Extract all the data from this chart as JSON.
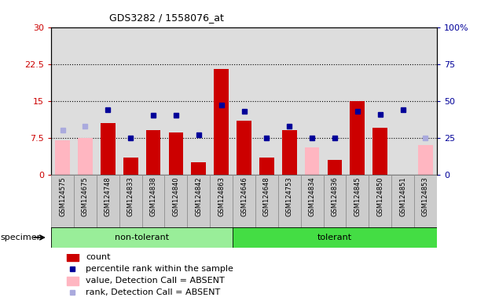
{
  "title": "GDS3282 / 1558076_at",
  "samples": [
    "GSM124575",
    "GSM124675",
    "GSM124748",
    "GSM124833",
    "GSM124838",
    "GSM124840",
    "GSM124842",
    "GSM124863",
    "GSM124646",
    "GSM124648",
    "GSM124753",
    "GSM124834",
    "GSM124836",
    "GSM124845",
    "GSM124850",
    "GSM124851",
    "GSM124853"
  ],
  "count": [
    null,
    null,
    10.5,
    3.5,
    9.0,
    8.5,
    2.5,
    21.5,
    11.0,
    3.5,
    9.0,
    null,
    3.0,
    15.0,
    9.5,
    null,
    null
  ],
  "percentile_rank": [
    null,
    null,
    44.0,
    25.0,
    40.0,
    40.0,
    27.0,
    47.0,
    43.0,
    25.0,
    33.0,
    25.0,
    25.0,
    43.0,
    41.0,
    44.0,
    null
  ],
  "value_absent": [
    7.0,
    7.5,
    null,
    null,
    null,
    null,
    null,
    null,
    null,
    null,
    null,
    5.5,
    null,
    null,
    null,
    null,
    6.0
  ],
  "rank_absent": [
    30.0,
    33.0,
    null,
    null,
    null,
    null,
    null,
    null,
    null,
    null,
    null,
    null,
    null,
    null,
    null,
    null,
    25.0
  ],
  "non_tolerant_count": 8,
  "tolerant_count": 9,
  "ylim_left": [
    0,
    30
  ],
  "ylim_right": [
    0,
    100
  ],
  "yticks_left": [
    0,
    7.5,
    15,
    22.5,
    30
  ],
  "yticks_right": [
    0,
    25,
    50,
    75,
    100
  ],
  "hlines": [
    7.5,
    15,
    22.5
  ],
  "bar_color_count": "#CC0000",
  "bar_color_absent_value": "#FFB6C1",
  "dot_color_rank": "#000099",
  "dot_color_absent_rank": "#AAAADD",
  "bg_plot": "#DDDDDD",
  "bar_width": 0.65,
  "non_tolerant_color": "#99EE99",
  "tolerant_color": "#44DD44",
  "label_bg_color": "#CCCCCC"
}
